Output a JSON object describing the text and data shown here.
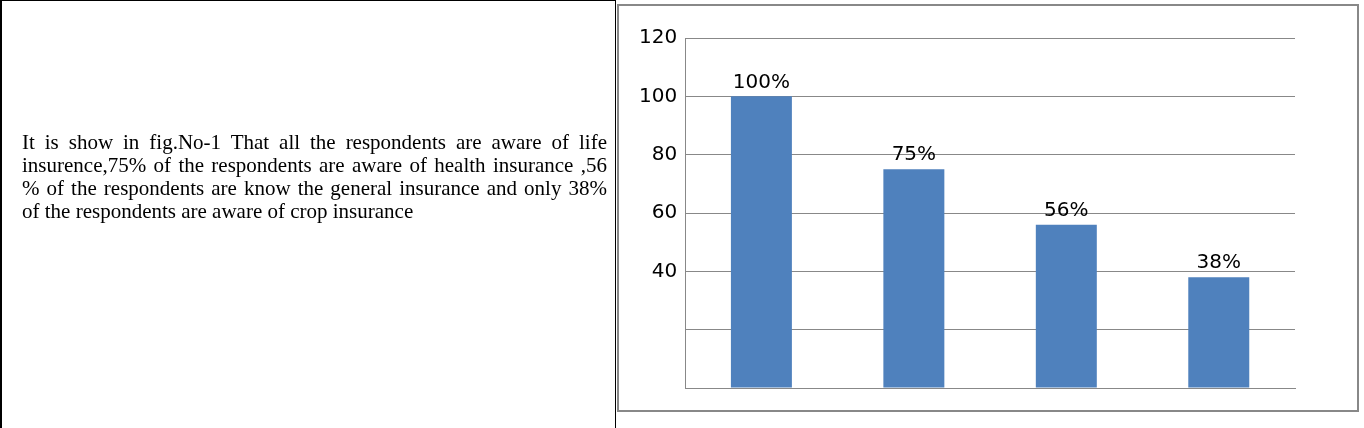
{
  "chart_data": {
    "type": "bar",
    "annotations": [
      "It is show in fig.No-1 That all the respondents are aware of life insurence,75% of the respondents are aware of health insurance ,56 % of the respondents are know the general insurance and only 38% of the respondents are aware of crop insurance"
    ],
    "categories": [
      null,
      null,
      null,
      null
    ],
    "values": [
      100,
      75,
      56,
      38
    ],
    "value_labels": [
      "100%",
      "75%",
      "56%",
      "38%"
    ],
    "color": "#4f81bd",
    "ylim": [
      0,
      120
    ],
    "yticks": [
      {
        "value": 0,
        "label": null
      },
      {
        "value": 20,
        "label": null
      },
      40,
      60,
      80,
      100,
      120
    ],
    "grid": "y",
    "legend": false
  }
}
